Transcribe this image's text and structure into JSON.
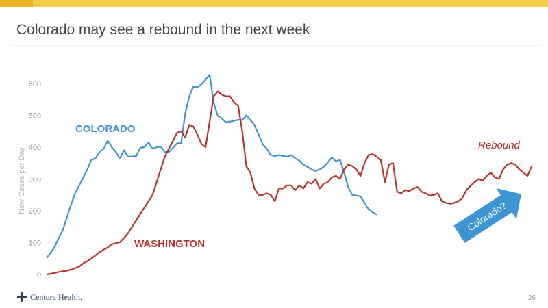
{
  "slide": {
    "title": "Colorado may see a rebound in the next week",
    "brand": "Centura Health.",
    "page_number": "26",
    "accent_color": "#f5cd4b"
  },
  "chart_data": {
    "type": "line",
    "title": "",
    "xlabel": "",
    "ylabel": "New Cases per Day",
    "ylim": [
      0,
      650
    ],
    "yticks": [
      0,
      100,
      200,
      300,
      400,
      500,
      600
    ],
    "grid": false,
    "series": [
      {
        "name": "COLORADO",
        "color": "#3d95d3",
        "x": [
          0,
          1,
          2,
          3,
          4,
          5,
          6,
          7,
          8,
          9,
          10,
          11,
          12,
          13,
          14,
          15,
          16,
          17,
          18,
          19,
          20,
          21,
          22,
          23,
          24,
          25,
          26,
          27,
          28,
          29,
          30,
          31,
          32,
          33,
          34,
          35,
          36,
          37,
          38,
          39,
          40,
          41,
          42,
          43,
          44,
          45,
          46,
          47,
          48,
          49,
          50,
          51,
          52,
          53,
          54,
          55,
          56,
          57,
          58,
          59,
          60,
          61,
          62,
          63,
          64,
          65,
          66,
          67,
          68,
          69,
          70,
          71,
          72,
          73,
          74,
          75,
          76,
          77,
          78,
          79,
          80,
          81,
          82,
          83
        ],
        "values": [
          52,
          68,
          88,
          115,
          140,
          180,
          220,
          255,
          280,
          305,
          330,
          360,
          365,
          385,
          395,
          420,
          400,
          385,
          365,
          390,
          370,
          370,
          372,
          398,
          400,
          415,
          395,
          400,
          402,
          385,
          385,
          398,
          412,
          412,
          505,
          560,
          590,
          588,
          598,
          612,
          628,
          540,
          498,
          490,
          478,
          480,
          483,
          486,
          485,
          500,
          485,
          470,
          440,
          410,
          395,
          375,
          372,
          375,
          372,
          370,
          375,
          365,
          358,
          345,
          338,
          330,
          325,
          330,
          338,
          352,
          368,
          355,
          360,
          320,
          275,
          250,
          248,
          245,
          225,
          205,
          195,
          188,
          null,
          null
        ]
      },
      {
        "name": "WASHINGTON",
        "color": "#b8322a",
        "x": [
          0,
          1,
          2,
          3,
          4,
          5,
          6,
          7,
          8,
          9,
          10,
          11,
          12,
          13,
          14,
          15,
          16,
          17,
          18,
          19,
          20,
          21,
          22,
          23,
          24,
          25,
          26,
          27,
          28,
          29,
          30,
          31,
          32,
          33,
          34,
          35,
          36,
          37,
          38,
          39,
          40,
          41,
          42,
          43,
          44,
          45,
          46,
          47,
          48,
          49,
          50,
          51,
          52,
          53,
          54,
          55,
          56,
          57,
          58,
          59,
          60,
          61,
          62,
          63,
          64,
          65,
          66,
          67,
          68,
          69,
          70,
          71,
          72,
          73,
          74,
          75,
          76,
          77,
          78,
          79,
          80,
          81,
          82,
          83,
          84,
          85,
          86,
          87,
          88,
          89,
          90,
          91,
          92,
          93,
          94,
          95,
          96,
          97,
          98,
          99,
          100,
          101,
          102,
          103,
          104,
          105,
          106,
          107,
          108,
          109,
          110,
          111,
          112,
          113,
          114,
          115,
          116,
          117,
          118,
          119
        ],
        "values": [
          0,
          2,
          5,
          8,
          10,
          12,
          15,
          20,
          25,
          35,
          42,
          50,
          60,
          70,
          78,
          85,
          95,
          98,
          102,
          115,
          130,
          150,
          170,
          190,
          210,
          230,
          250,
          290,
          330,
          370,
          395,
          420,
          445,
          450,
          430,
          470,
          465,
          440,
          410,
          400,
          480,
          560,
          575,
          565,
          560,
          560,
          540,
          530,
          450,
          340,
          320,
          270,
          250,
          250,
          255,
          250,
          230,
          270,
          270,
          280,
          280,
          265,
          280,
          270,
          290,
          285,
          300,
          270,
          285,
          290,
          305,
          310,
          300,
          330,
          345,
          340,
          330,
          310,
          350,
          375,
          378,
          370,
          360,
          290,
          345,
          350,
          260,
          255,
          265,
          262,
          270,
          275,
          260,
          255,
          248,
          250,
          255,
          230,
          225,
          222,
          225,
          230,
          240,
          265,
          278,
          290,
          300,
          295,
          310,
          320,
          305,
          300,
          330,
          345,
          350,
          345,
          330,
          320,
          310,
          340
        ]
      }
    ],
    "annotations": [
      {
        "text": "COLORADO",
        "series": "COLORADO"
      },
      {
        "text": "WASHINGTON",
        "series": "WASHINGTON"
      },
      {
        "text": "Rebound",
        "series": "WASHINGTON"
      },
      {
        "text": "Colorado?",
        "type": "arrow",
        "color": "#3d95d3"
      }
    ]
  }
}
